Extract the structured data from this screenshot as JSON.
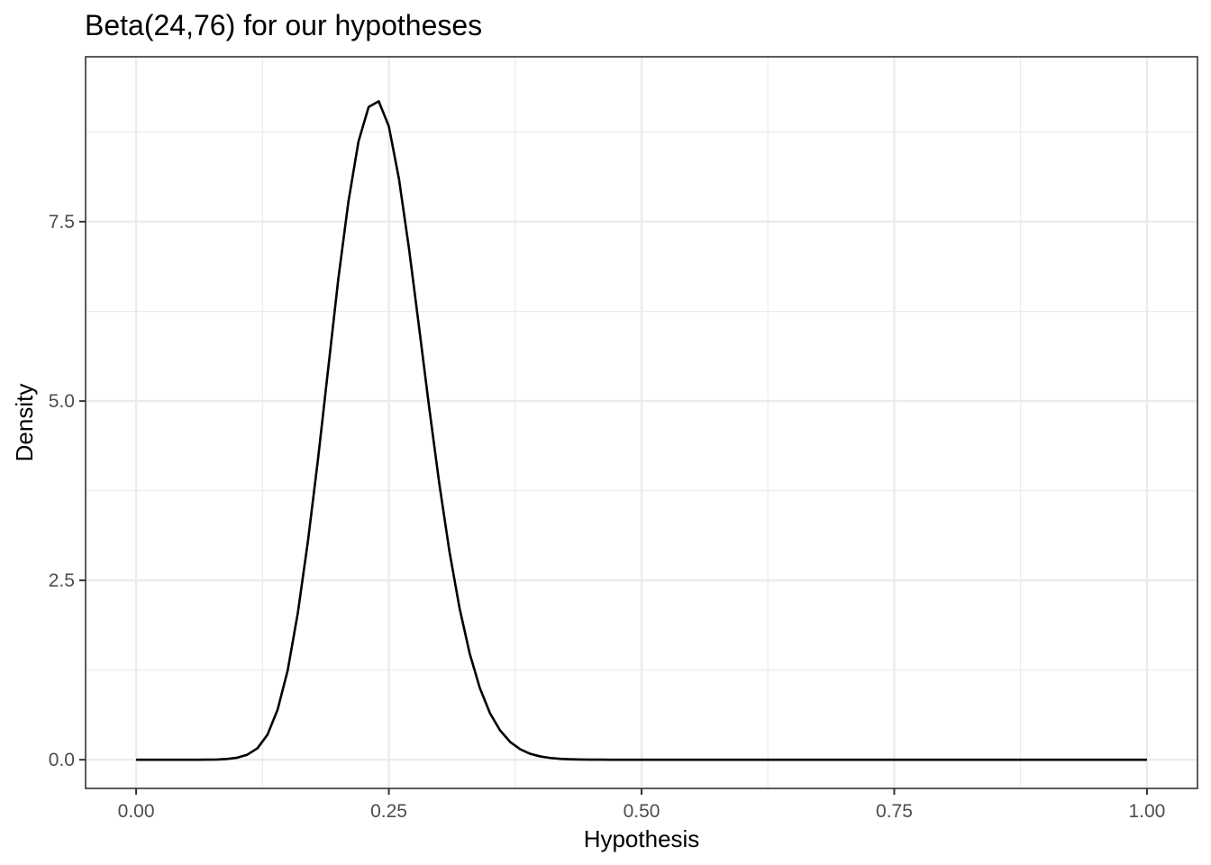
{
  "chart_data": {
    "type": "line",
    "title": "Beta(24,76) for our hypotheses",
    "xlabel": "Hypothesis",
    "ylabel": "Density",
    "xlim": [
      -0.05,
      1.05
    ],
    "ylim": [
      -0.4,
      9.8
    ],
    "x_ticks": [
      0,
      0.25,
      0.5,
      0.75,
      1
    ],
    "x_tick_labels": [
      "0.00",
      "0.25",
      "0.50",
      "0.75",
      "1.00"
    ],
    "x_minor": [
      0.125,
      0.375,
      0.625,
      0.875
    ],
    "y_ticks": [
      0,
      2.5,
      5,
      7.5
    ],
    "y_tick_labels": [
      "0.0",
      "2.5",
      "5.0",
      "7.5"
    ],
    "y_minor": [
      1.25,
      3.75,
      6.25,
      8.75
    ],
    "grid": true,
    "legend": "none",
    "series": [
      {
        "color": "#000000",
        "x": [
          0,
          0.01,
          0.02,
          0.03,
          0.04,
          0.05,
          0.06,
          0.07,
          0.08,
          0.09,
          0.1,
          0.11,
          0.12,
          0.13,
          0.14,
          0.15,
          0.16,
          0.17,
          0.18,
          0.19,
          0.2,
          0.21,
          0.22,
          0.23,
          0.24,
          0.25,
          0.26,
          0.27,
          0.28,
          0.29,
          0.3,
          0.31,
          0.32,
          0.33,
          0.34,
          0.35,
          0.36,
          0.37,
          0.38,
          0.39,
          0.4,
          0.41,
          0.42,
          0.43,
          0.44,
          0.45,
          0.46,
          0.47,
          0.48,
          0.49,
          0.5,
          0.55,
          0.6,
          0.65,
          0.7,
          0.75,
          0.8,
          0.85,
          0.9,
          0.95,
          1
        ],
        "y": [
          0,
          0,
          0,
          0,
          0,
          0,
          0,
          0.001,
          0.003,
          0.01,
          0.028,
          0.07,
          0.16,
          0.35,
          0.7,
          1.25,
          2.05,
          3.05,
          4.2,
          5.45,
          6.7,
          7.78,
          8.62,
          9.1,
          9.18,
          8.83,
          8.1,
          7.12,
          6.02,
          4.9,
          3.84,
          2.9,
          2.11,
          1.48,
          1.0,
          0.65,
          0.41,
          0.248,
          0.145,
          0.082,
          0.045,
          0.024,
          0.012,
          0.006,
          0.003,
          0.001,
          0.001,
          0,
          0,
          0,
          0,
          0,
          0,
          0,
          0,
          0,
          0,
          0,
          0,
          0,
          0
        ]
      }
    ]
  }
}
